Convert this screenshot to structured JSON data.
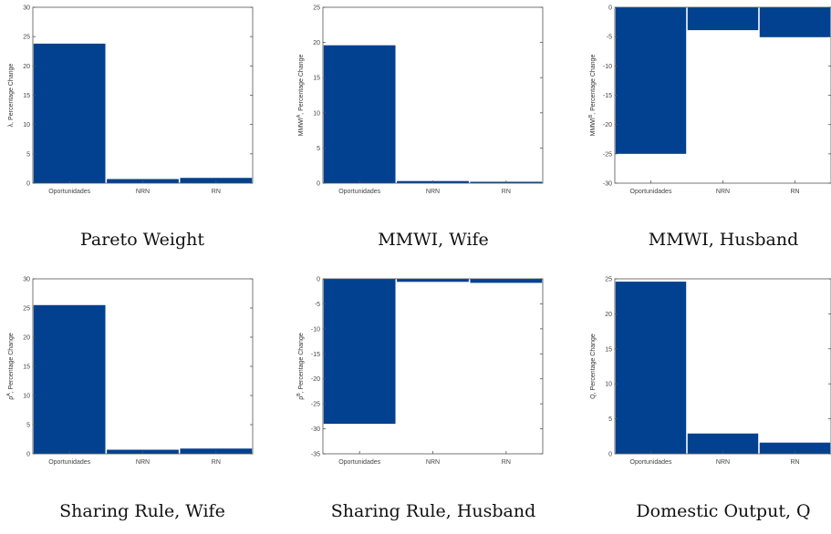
{
  "colors": {
    "bar": "#02418f",
    "axis": "#555555",
    "text": "#222222"
  },
  "chart_data": [
    {
      "type": "bar",
      "categories": [
        "Oportunidades",
        "NRN",
        "RN"
      ],
      "values": [
        23.8,
        0.7,
        0.9
      ],
      "ylim": [
        0,
        30
      ],
      "yticks": [
        "0",
        "5",
        "10",
        "15",
        "20",
        "25",
        "30"
      ],
      "ylabel": "λ, Percentage Change",
      "caption": "Pareto Weight"
    },
    {
      "type": "bar",
      "categories": [
        "Oportunidades",
        "NRN",
        "RN"
      ],
      "values": [
        19.6,
        0.3,
        0.2
      ],
      "ylim": [
        0,
        25
      ],
      "yticks": [
        "0",
        "5",
        "10",
        "15",
        "20",
        "25"
      ],
      "ylabel_main": "MMWI",
      "ylabel_sup": "A",
      "ylabel_rest": ", Percentage Change",
      "caption": "MMWI, Wife"
    },
    {
      "type": "bar",
      "categories": [
        "Oportunidades",
        "NRN",
        "RN"
      ],
      "values": [
        -25.0,
        -3.9,
        -5.1
      ],
      "ylim": [
        -30,
        0
      ],
      "yticks": [
        "-30",
        "-25",
        "-20",
        "-15",
        "-10",
        "-5",
        "0"
      ],
      "ylabel_main": "MMWI",
      "ylabel_sup": "B",
      "ylabel_rest": ", Percentage Change",
      "caption": "MMWI, Husband"
    },
    {
      "type": "bar",
      "categories": [
        "Oportunidades",
        "NRN",
        "RN"
      ],
      "values": [
        25.5,
        0.7,
        0.9
      ],
      "ylim": [
        0,
        30
      ],
      "yticks": [
        "0",
        "5",
        "10",
        "15",
        "20",
        "25",
        "30"
      ],
      "ylabel_main": "ρ",
      "ylabel_sup": "A",
      "ylabel_rest": ", Percentage Change",
      "caption": "Sharing Rule, Wife"
    },
    {
      "type": "bar",
      "categories": [
        "Oportunidades",
        "NRN",
        "RN"
      ],
      "values": [
        -29.0,
        -0.6,
        -0.8
      ],
      "ylim": [
        -35,
        0
      ],
      "yticks": [
        "-35",
        "-30",
        "-25",
        "-20",
        "-15",
        "-10",
        "-5",
        "0"
      ],
      "ylabel_main": "ρ",
      "ylabel_sup": "B",
      "ylabel_rest": ", Percentage Change",
      "caption": "Sharing Rule, Husband"
    },
    {
      "type": "bar",
      "categories": [
        "Oportunidades",
        "NRN",
        "RN"
      ],
      "values": [
        24.6,
        2.9,
        1.6
      ],
      "ylim": [
        0,
        25
      ],
      "yticks": [
        "0",
        "5",
        "10",
        "15",
        "20",
        "25"
      ],
      "ylabel": "Q, Percentage Change",
      "caption": "Domestic Output, Q"
    }
  ]
}
